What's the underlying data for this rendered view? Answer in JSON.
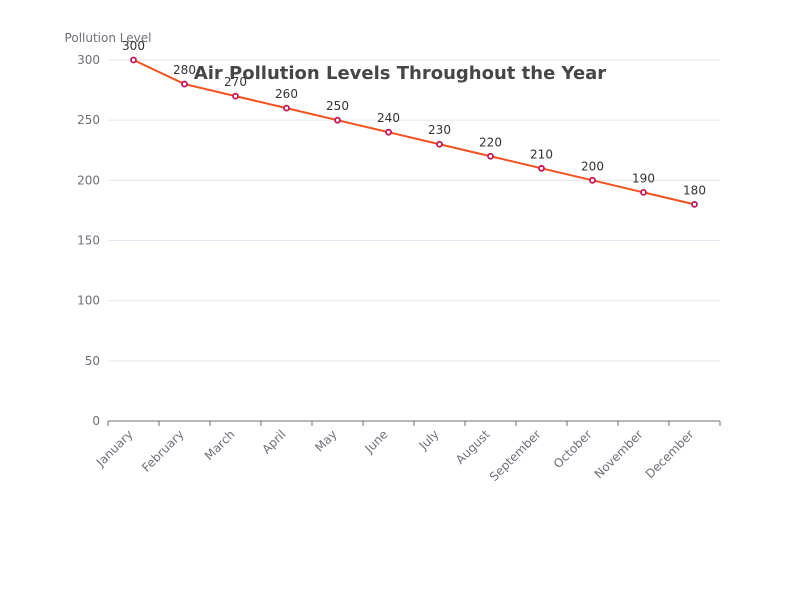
{
  "chart_data": {
    "type": "line",
    "title": "Air Pollution Levels Throughout the Year",
    "ylabel": "Pollution Level",
    "xlabel": "",
    "categories": [
      "January",
      "February",
      "March",
      "April",
      "May",
      "June",
      "July",
      "August",
      "September",
      "October",
      "November",
      "December"
    ],
    "values": [
      300,
      280,
      270,
      260,
      250,
      240,
      230,
      220,
      210,
      200,
      190,
      180
    ],
    "ylim": [
      0,
      300
    ],
    "yticks": [
      0,
      50,
      100,
      150,
      200,
      250,
      300
    ],
    "grid": true,
    "data_labels": true,
    "legend": "none",
    "line_color": "#f4511e",
    "marker_color": "#c2185b"
  },
  "colors": {
    "title": "#464646",
    "axis_text": "#6e7079",
    "data_label": "#333333",
    "grid": "#e0e6f1",
    "axis_line": "#6e7079"
  }
}
